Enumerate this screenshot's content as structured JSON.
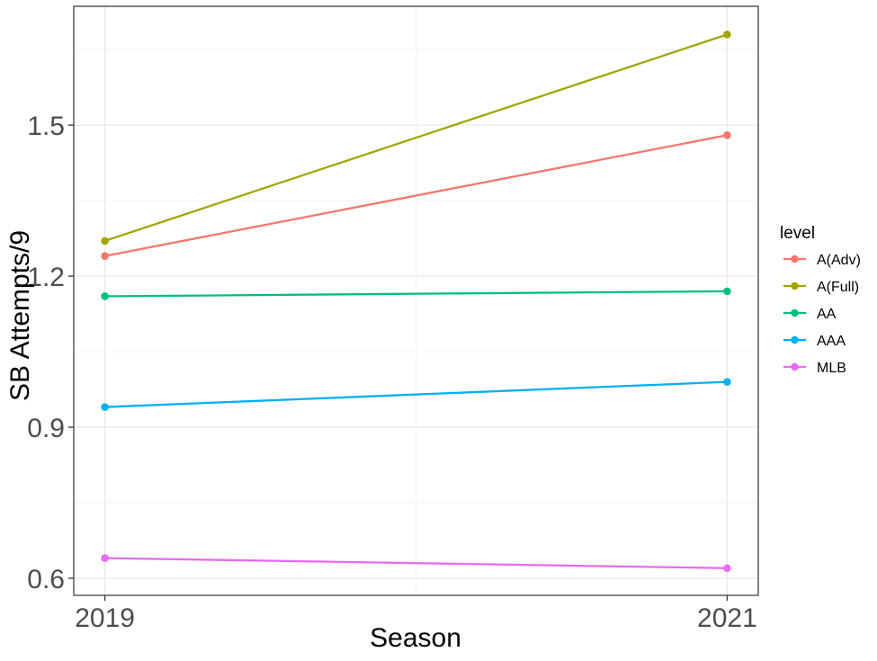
{
  "chart_data": {
    "type": "line",
    "title": "",
    "xlabel": "Season",
    "ylabel": "SB Attempts/9",
    "x": [
      2019,
      2021
    ],
    "series": [
      {
        "name": "A(Adv)",
        "color": "#F8766D",
        "values": [
          1.24,
          1.48
        ]
      },
      {
        "name": "A(Full)",
        "color": "#A3A500",
        "values": [
          1.27,
          1.68
        ]
      },
      {
        "name": "AA",
        "color": "#00BF7D",
        "values": [
          1.16,
          1.17
        ]
      },
      {
        "name": "AAA",
        "color": "#00B0F6",
        "values": [
          0.94,
          0.99
        ]
      },
      {
        "name": "MLB",
        "color": "#E76BF3",
        "values": [
          0.64,
          0.62
        ]
      }
    ],
    "legend": {
      "title": "level",
      "position": "right"
    },
    "x_axis": {
      "ticks": [
        2019,
        2021
      ],
      "tick_labels": [
        "2019",
        "2021"
      ],
      "minor_breaks": [
        2020
      ],
      "lim": [
        2018.9,
        2021.1
      ]
    },
    "y_axis": {
      "ticks": [
        0.6,
        0.9,
        1.2,
        1.5
      ],
      "tick_labels": [
        "0.6",
        "0.9",
        "1.2",
        "1.5"
      ],
      "minor_breaks": [
        0.75,
        1.05,
        1.35,
        1.65
      ],
      "lim": [
        0.566,
        1.736
      ]
    },
    "grid": true,
    "style": {
      "panel_background": "#ffffff",
      "grid_major_color": "#e8e8e8",
      "grid_minor_color": "#f1f1f1",
      "panel_border_color": "#404040",
      "tick_mark_color": "#333333",
      "tick_label_color": "#4d4d4d"
    }
  }
}
